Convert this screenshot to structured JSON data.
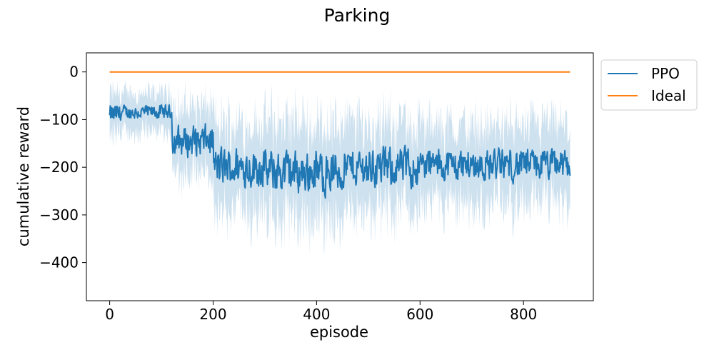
{
  "chart_data": {
    "type": "line",
    "title": "Parking",
    "xlabel": "episode",
    "ylabel": "cumulative reward",
    "xlim": [
      -45,
      935
    ],
    "ylim": [
      -480,
      40
    ],
    "xticks": [
      0,
      200,
      400,
      600,
      800
    ],
    "yticks": [
      0,
      -100,
      -200,
      -300,
      -400
    ],
    "xtick_labels": [
      "0",
      "200",
      "400",
      "600",
      "800"
    ],
    "ytick_labels": [
      "0",
      "−100",
      "−200",
      "−300",
      "−400"
    ],
    "grid": false,
    "legend": {
      "position": "outside-top-right",
      "entries": [
        "PPO",
        "Ideal"
      ]
    },
    "colors": {
      "PPO": "#1f77b4",
      "Ideal": "#ff7f0e",
      "band": "#1f77b4"
    },
    "series": [
      {
        "name": "PPO",
        "x_range": [
          0,
          890
        ],
        "segments": [
          {
            "x_start": 0,
            "x_end": 20,
            "mean": -90,
            "amplitude": 30,
            "band": 45
          },
          {
            "x_start": 20,
            "x_end": 120,
            "mean": -85,
            "amplitude": 20,
            "band": 40
          },
          {
            "x_start": 120,
            "x_end": 200,
            "mean": -145,
            "amplitude": 45,
            "band": 70
          },
          {
            "x_start": 200,
            "x_end": 300,
            "mean": -200,
            "amplitude": 55,
            "band": 90
          },
          {
            "x_start": 300,
            "x_end": 450,
            "mean": -210,
            "amplitude": 60,
            "band": 100
          },
          {
            "x_start": 450,
            "x_end": 600,
            "mean": -200,
            "amplitude": 55,
            "band": 90
          },
          {
            "x_start": 600,
            "x_end": 890,
            "mean": -195,
            "amplitude": 45,
            "band": 80
          }
        ],
        "min": -330,
        "max": -55
      },
      {
        "name": "Ideal",
        "x": [
          0,
          890
        ],
        "y": [
          0,
          0
        ]
      }
    ]
  }
}
